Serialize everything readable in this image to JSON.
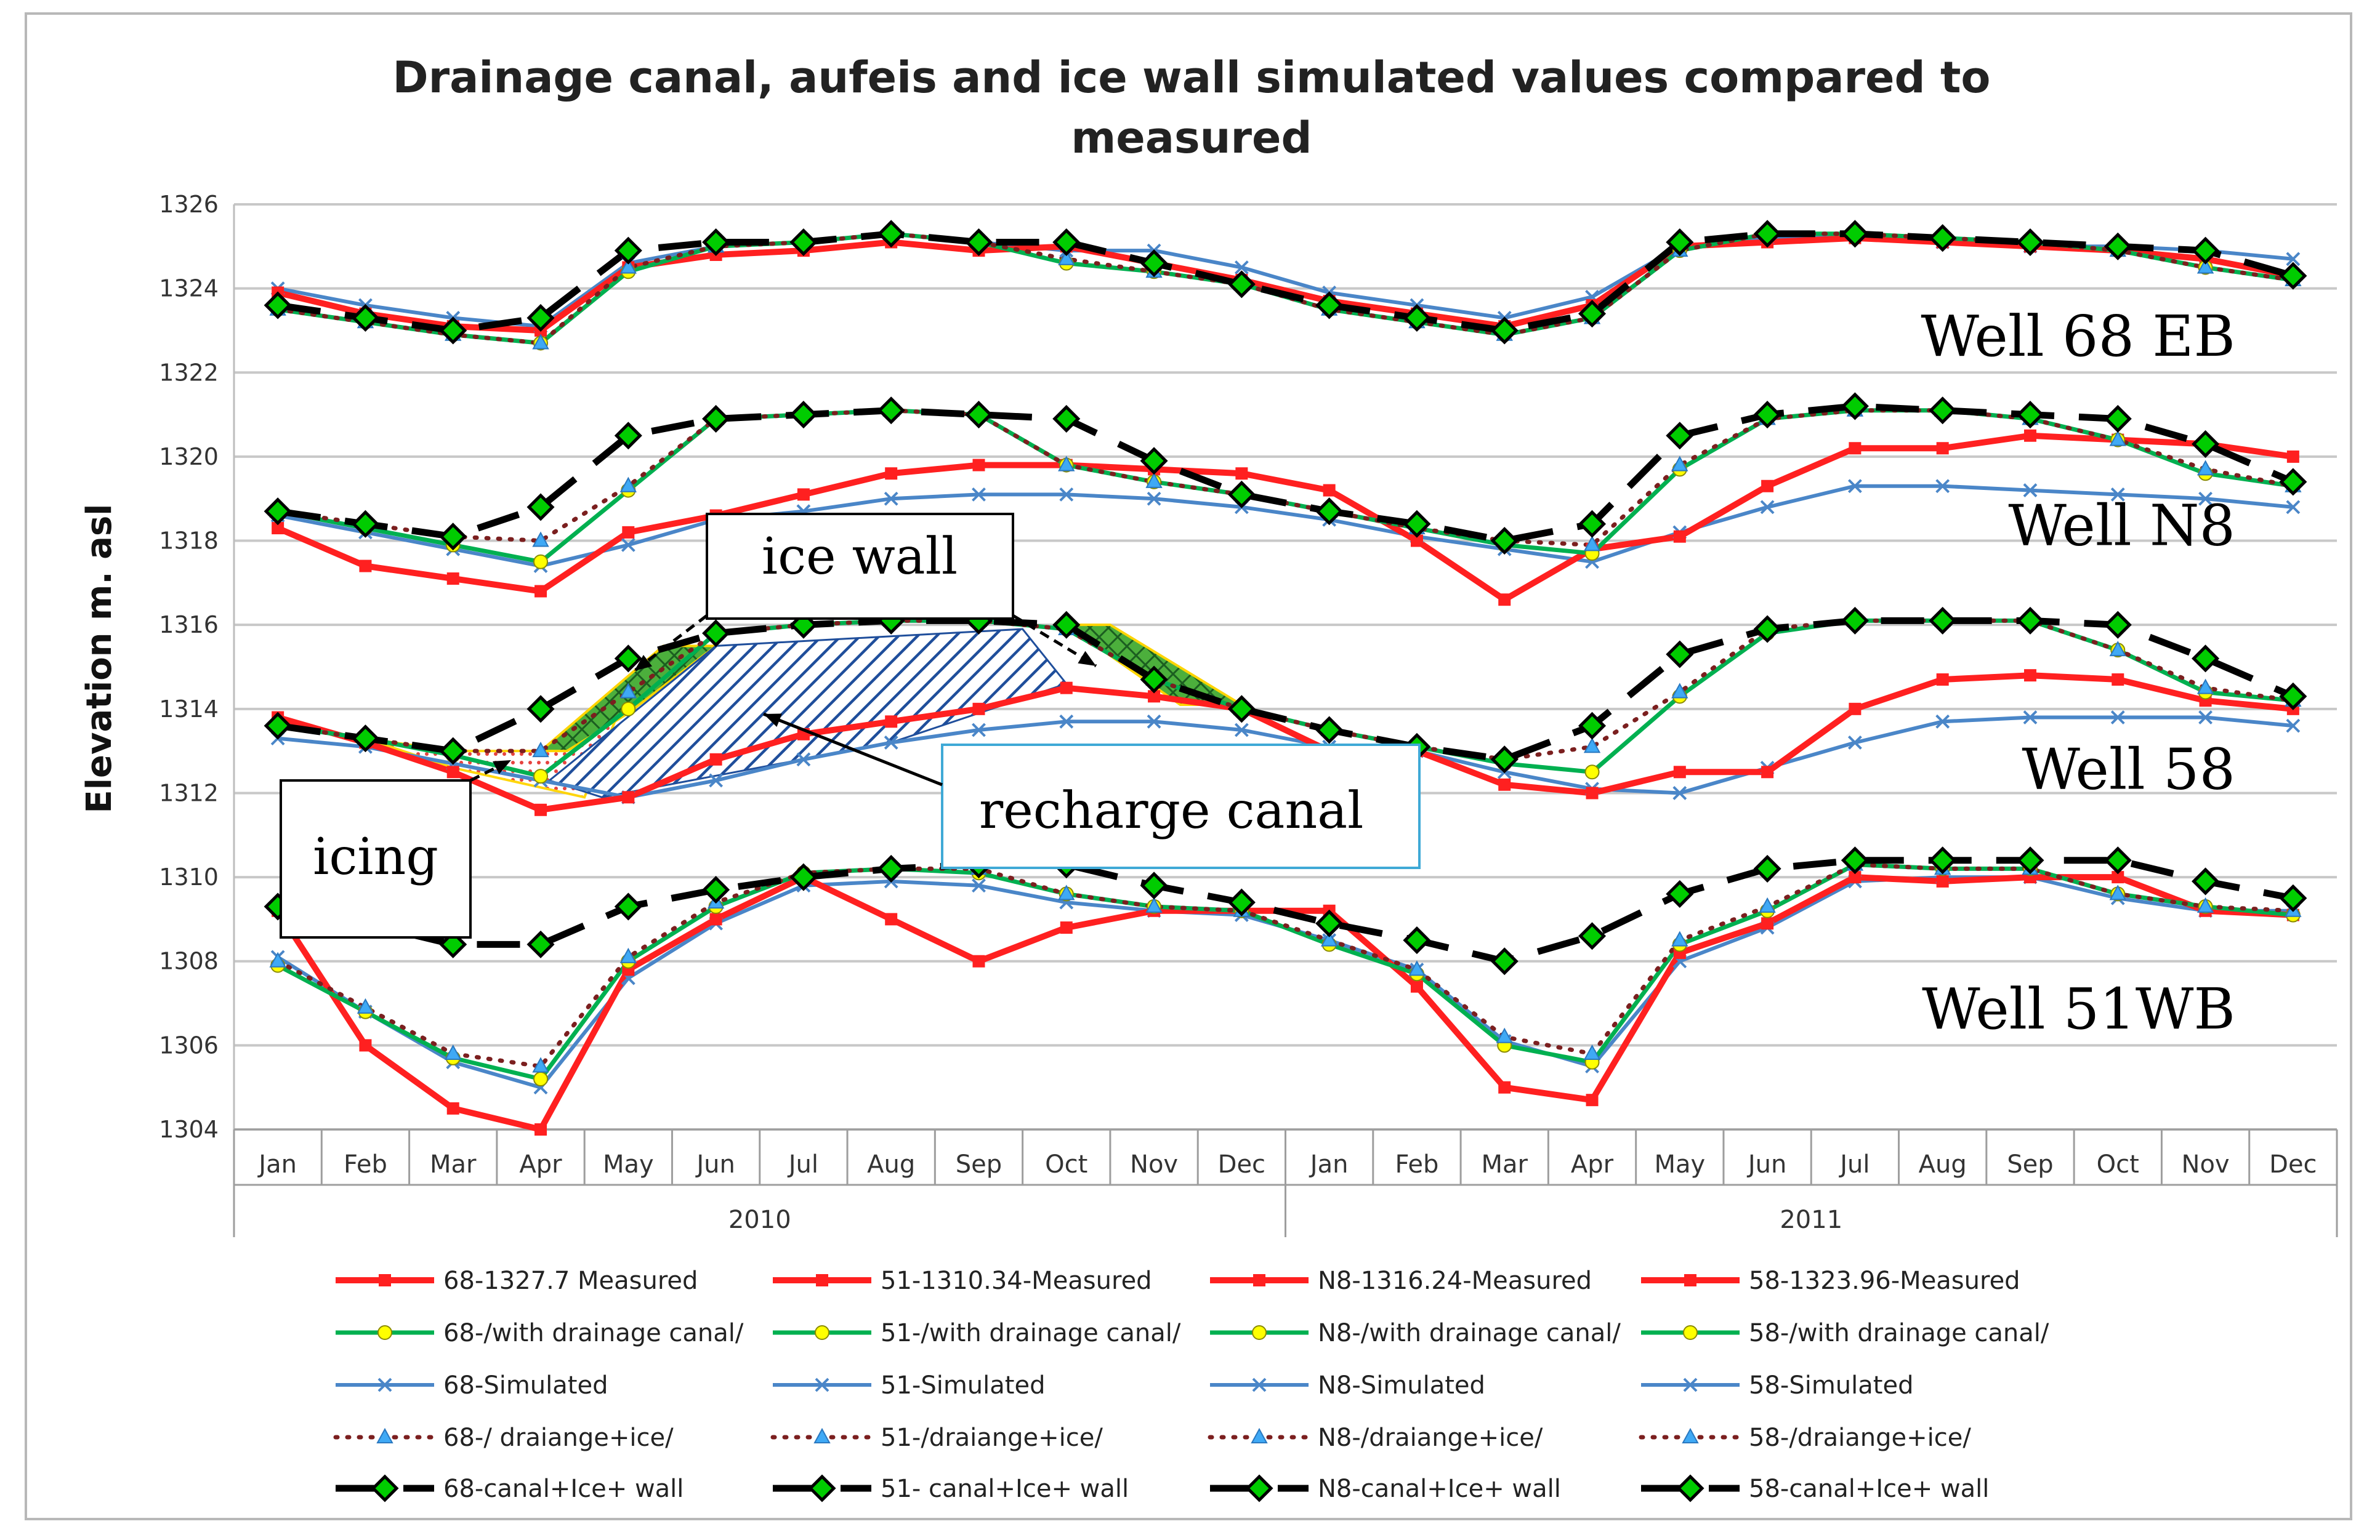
{
  "chart_data": {
    "type": "line",
    "title": "Drainage canal, aufeis and  ice wall  simulated values compared to measured",
    "title_lines": [
      "Drainage canal, aufeis and  ice wall  simulated values compared to",
      "measured"
    ],
    "xlabel": "",
    "ylabel": "Elevation m. asl",
    "ylim": [
      1304,
      1326
    ],
    "yticks": [
      "1304",
      "1306",
      "1308",
      "1310",
      "1312",
      "1314",
      "1316",
      "1318",
      "1320",
      "1322",
      "1324",
      "1326"
    ],
    "categories": [
      "Jan",
      "Feb",
      "Mar",
      "Apr",
      "May",
      "Jun",
      "Jul",
      "Aug",
      "Sep",
      "Oct",
      "Nov",
      "Dec",
      "Jan",
      "Feb",
      "Mar",
      "Apr",
      "May",
      "Jun",
      "Jul",
      "Aug",
      "Sep",
      "Oct",
      "Nov",
      "Dec"
    ],
    "years": [
      "2010",
      "2011"
    ],
    "grid": true,
    "legend_position": "bottom",
    "colors": {
      "measured": "#ff2020",
      "drainage": "#00b050",
      "drainage_marker": "#ffff00",
      "simulated": "#4a86c8",
      "ice": "#7b1f1f",
      "ice_marker": "#3fa9f5",
      "wall": "#000000",
      "wall_marker": "#00cc00"
    },
    "series": [
      {
        "name": "68-1327.7 Measured",
        "style": "measured",
        "values": [
          1323.9,
          1323.4,
          1323.1,
          1323.0,
          1324.5,
          1324.8,
          1324.9,
          1325.1,
          1324.9,
          1325.0,
          1324.6,
          1324.2,
          1323.7,
          1323.4,
          1323.1,
          1323.6,
          1325.0,
          1325.1,
          1325.2,
          1325.1,
          1325.0,
          1324.9,
          1324.7,
          1324.3
        ]
      },
      {
        "name": "51-1310.34-Measured",
        "style": "measured",
        "values": [
          1309.2,
          1306.0,
          1304.5,
          1304.0,
          1307.8,
          1309.0,
          1310.0,
          1309.0,
          1308.0,
          1308.8,
          1309.2,
          1309.2,
          1309.2,
          1307.4,
          1305.0,
          1304.7,
          1308.2,
          1308.9,
          1310.0,
          1309.9,
          1310.0,
          1310.0,
          1309.2,
          1309.1
        ]
      },
      {
        "name": "N8-1316.24-Measured",
        "style": "measured",
        "values": [
          1318.3,
          1317.4,
          1317.1,
          1316.8,
          1318.2,
          1318.6,
          1319.1,
          1319.6,
          1319.8,
          1319.8,
          1319.7,
          1319.6,
          1319.2,
          1318.0,
          1316.6,
          1317.8,
          1318.1,
          1319.3,
          1320.2,
          1320.2,
          1320.5,
          1320.4,
          1320.3,
          1320.0
        ]
      },
      {
        "name": "58-1323.96-Measured",
        "style": "measured",
        "values": [
          1313.8,
          1313.2,
          1312.5,
          1311.6,
          1311.9,
          1312.8,
          1313.4,
          1313.7,
          1314.0,
          1314.5,
          1314.3,
          1314.0,
          1313.0,
          1313.0,
          1312.2,
          1312.0,
          1312.5,
          1312.5,
          1314.0,
          1314.7,
          1314.8,
          1314.7,
          1314.2,
          1314.0
        ]
      },
      {
        "name": "68-/with drainage canal/",
        "style": "drainage",
        "values": [
          1323.5,
          1323.2,
          1322.9,
          1322.7,
          1324.4,
          1325.0,
          1325.1,
          1325.3,
          1325.1,
          1324.6,
          1324.4,
          1324.1,
          1323.5,
          1323.2,
          1322.9,
          1323.3,
          1324.9,
          1325.3,
          1325.3,
          1325.2,
          1325.1,
          1324.9,
          1324.5,
          1324.2
        ]
      },
      {
        "name": "51-/with  drainage canal/",
        "style": "drainage",
        "values": [
          1307.9,
          1306.8,
          1305.7,
          1305.2,
          1308.0,
          1309.3,
          1310.1,
          1310.2,
          1310.1,
          1309.6,
          1309.3,
          1309.2,
          1308.4,
          1307.7,
          1306.0,
          1305.6,
          1308.4,
          1309.2,
          1310.3,
          1310.2,
          1310.2,
          1309.6,
          1309.3,
          1309.1
        ]
      },
      {
        "name": "N8-/with drainage canal/",
        "style": "drainage",
        "values": [
          1318.7,
          1318.3,
          1317.9,
          1317.5,
          1319.2,
          1320.9,
          1321.0,
          1321.1,
          1321.0,
          1319.8,
          1319.4,
          1319.1,
          1318.7,
          1318.3,
          1317.9,
          1317.7,
          1319.7,
          1320.9,
          1321.1,
          1321.1,
          1320.9,
          1320.4,
          1319.6,
          1319.3
        ]
      },
      {
        "name": "58-/with drainage canal/",
        "style": "drainage",
        "values": [
          1313.6,
          1313.3,
          1312.9,
          1312.4,
          1314.0,
          1315.8,
          1316.0,
          1316.1,
          1316.1,
          1315.9,
          1314.7,
          1314.0,
          1313.5,
          1313.1,
          1312.7,
          1312.5,
          1314.3,
          1315.8,
          1316.1,
          1316.1,
          1316.1,
          1315.4,
          1314.4,
          1314.2
        ]
      },
      {
        "name": "68-Simulated",
        "style": "simulated",
        "values": [
          1324.0,
          1323.6,
          1323.3,
          1323.1,
          1324.6,
          1325.0,
          1325.1,
          1325.3,
          1325.1,
          1324.9,
          1324.9,
          1324.5,
          1323.9,
          1323.6,
          1323.3,
          1323.8,
          1325.0,
          1325.2,
          1325.3,
          1325.1,
          1325.0,
          1325.0,
          1324.9,
          1324.7
        ]
      },
      {
        "name": "51-Simulated",
        "style": "simulated",
        "values": [
          1308.1,
          1306.8,
          1305.6,
          1305.0,
          1307.6,
          1308.9,
          1309.8,
          1309.9,
          1309.8,
          1309.4,
          1309.2,
          1309.1,
          1308.5,
          1307.8,
          1306.1,
          1305.5,
          1308.0,
          1308.8,
          1309.9,
          1310.0,
          1310.0,
          1309.5,
          1309.2,
          1309.2
        ]
      },
      {
        "name": "N8-Simulated",
        "style": "simulated",
        "values": [
          1318.6,
          1318.2,
          1317.8,
          1317.4,
          1317.9,
          1318.5,
          1318.7,
          1319.0,
          1319.1,
          1319.1,
          1319.0,
          1318.8,
          1318.5,
          1318.1,
          1317.8,
          1317.5,
          1318.2,
          1318.8,
          1319.3,
          1319.3,
          1319.2,
          1319.1,
          1319.0,
          1318.8
        ]
      },
      {
        "name": "58-Simulated",
        "style": "simulated",
        "values": [
          1313.3,
          1313.1,
          1312.7,
          1312.3,
          1311.9,
          1312.3,
          1312.8,
          1313.2,
          1313.5,
          1313.7,
          1313.7,
          1313.5,
          1313.1,
          1313.0,
          1312.5,
          1312.1,
          1312.0,
          1312.6,
          1313.2,
          1313.7,
          1313.8,
          1313.8,
          1313.8,
          1313.6
        ]
      },
      {
        "name": "68-/ draiange+ice/",
        "style": "ice",
        "values": [
          1323.5,
          1323.2,
          1322.9,
          1322.7,
          1324.5,
          1325.0,
          1325.1,
          1325.3,
          1325.1,
          1324.7,
          1324.4,
          1324.1,
          1323.5,
          1323.2,
          1322.9,
          1323.3,
          1324.9,
          1325.3,
          1325.3,
          1325.2,
          1325.1,
          1324.9,
          1324.5,
          1324.2
        ]
      },
      {
        "name": "51-/draiange+ice/",
        "style": "ice",
        "values": [
          1308.0,
          1306.9,
          1305.8,
          1305.5,
          1308.1,
          1309.4,
          1310.1,
          1310.2,
          1310.2,
          1309.6,
          1309.3,
          1309.2,
          1308.5,
          1307.8,
          1306.2,
          1305.8,
          1308.5,
          1309.3,
          1310.3,
          1310.2,
          1310.2,
          1309.6,
          1309.3,
          1309.2
        ]
      },
      {
        "name": "N8-/draiange+ice/",
        "style": "ice",
        "values": [
          1318.7,
          1318.4,
          1318.1,
          1318.0,
          1319.3,
          1320.9,
          1321.0,
          1321.1,
          1321.0,
          1319.8,
          1319.4,
          1319.1,
          1318.7,
          1318.3,
          1318.0,
          1317.9,
          1319.8,
          1320.9,
          1321.1,
          1321.1,
          1320.9,
          1320.4,
          1319.7,
          1319.3
        ]
      },
      {
        "name": "58-/draiange+ice/",
        "style": "ice",
        "values": [
          1313.6,
          1313.3,
          1313.0,
          1313.0,
          1314.4,
          1315.8,
          1316.0,
          1316.1,
          1316.1,
          1315.9,
          1314.7,
          1314.0,
          1313.5,
          1313.1,
          1312.8,
          1313.1,
          1314.4,
          1315.9,
          1316.1,
          1316.1,
          1316.1,
          1315.4,
          1314.5,
          1314.2
        ]
      },
      {
        "name": "68-canal+Ice+ wall",
        "style": "wall",
        "values": [
          1323.6,
          1323.3,
          1323.0,
          1323.3,
          1324.9,
          1325.1,
          1325.1,
          1325.3,
          1325.1,
          1325.1,
          1324.6,
          1324.1,
          1323.6,
          1323.3,
          1323.0,
          1323.4,
          1325.1,
          1325.3,
          1325.3,
          1325.2,
          1325.1,
          1325.0,
          1324.9,
          1324.3
        ]
      },
      {
        "name": "51- canal+Ice+ wall",
        "style": "wall",
        "values": [
          1309.3,
          1308.9,
          1308.4,
          1308.4,
          1309.3,
          1309.7,
          1310.0,
          1310.2,
          1310.3,
          1310.3,
          1309.8,
          1309.4,
          1308.9,
          1308.5,
          1308.0,
          1308.6,
          1309.6,
          1310.2,
          1310.4,
          1310.4,
          1310.4,
          1310.4,
          1309.9,
          1309.5
        ]
      },
      {
        "name": "N8-canal+Ice+ wall",
        "style": "wall",
        "values": [
          1318.7,
          1318.4,
          1318.1,
          1318.8,
          1320.5,
          1320.9,
          1321.0,
          1321.1,
          1321.0,
          1320.9,
          1319.9,
          1319.1,
          1318.7,
          1318.4,
          1318.0,
          1318.4,
          1320.5,
          1321.0,
          1321.2,
          1321.1,
          1321.0,
          1320.9,
          1320.3,
          1319.4
        ]
      },
      {
        "name": "58-canal+Ice+ wall",
        "style": "wall",
        "values": [
          1313.6,
          1313.3,
          1313.0,
          1314.0,
          1315.2,
          1315.8,
          1316.0,
          1316.1,
          1316.1,
          1316.0,
          1314.7,
          1314.0,
          1313.5,
          1313.1,
          1312.8,
          1313.6,
          1315.3,
          1315.9,
          1316.1,
          1316.1,
          1316.1,
          1316.0,
          1315.2,
          1314.3
        ]
      }
    ],
    "annotations": {
      "well_labels": [
        {
          "text": "Well 68 EB",
          "y": 1322.4
        },
        {
          "text": "Well N8",
          "y": 1317.9
        },
        {
          "text": "Well 58",
          "y": 1312.1
        },
        {
          "text": "Well 51WB",
          "y": 1306.4
        }
      ],
      "boxes": [
        {
          "id": "ice-wall",
          "text": "ice wall"
        },
        {
          "id": "recharge-canal",
          "text": "recharge canal"
        },
        {
          "id": "icing",
          "text": "icing"
        }
      ],
      "regions": {
        "ice_wall_left": [
          [
            3,
            1313.0
          ],
          [
            4.4,
            1315.5
          ],
          [
            5,
            1315.5
          ],
          [
            4,
            1313.9
          ],
          [
            3.3,
            1313.0
          ]
        ],
        "ice_wall_right": [
          [
            9,
            1316.0
          ],
          [
            9.5,
            1316.0
          ],
          [
            11,
            1314.1
          ],
          [
            10.3,
            1314.1
          ]
        ],
        "icing": [
          [
            1,
            1313.3
          ],
          [
            2,
            1313.0
          ],
          [
            3,
            1313.0
          ],
          [
            4,
            1314.5
          ],
          [
            3.5,
            1311.9
          ],
          [
            2,
            1312.6
          ]
        ],
        "recharge_canal": [
          [
            3.1,
            1312.3
          ],
          [
            5.0,
            1315.5
          ],
          [
            8.5,
            1315.9
          ],
          [
            9.0,
            1314.6
          ],
          [
            7.0,
            1313.2
          ],
          [
            3.7,
            1311.9
          ]
        ]
      }
    }
  }
}
